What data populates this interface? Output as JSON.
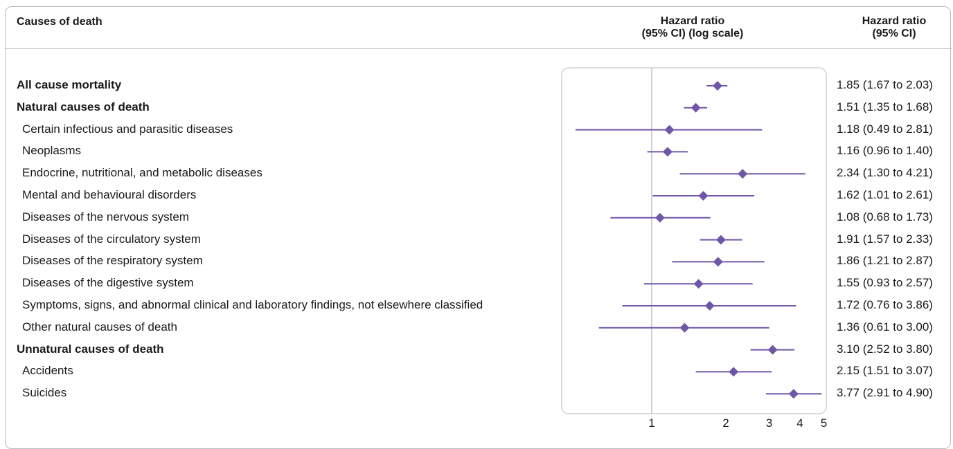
{
  "headers": {
    "causes": "Causes of death",
    "plot_line1": "Hazard ratio",
    "plot_line2": "(95% CI) (log scale)",
    "hr_line1": "Hazard ratio",
    "hr_line2": "(95% CI)"
  },
  "colors": {
    "marker": "#6f57a8",
    "reference_line": "#b0b0b0",
    "frame": "#b9b9b9"
  },
  "chart_data": {
    "type": "forest",
    "x_scale": "log",
    "xlim": [
      0.6,
      5
    ],
    "reference_value": 1,
    "x_ticks": [
      1,
      2,
      3,
      4,
      5
    ],
    "x_tick_labels": [
      "1",
      "2",
      "3",
      "4",
      "5"
    ],
    "rows": [
      {
        "label": "All cause mortality",
        "bold": true,
        "hr": 1.85,
        "lo": 1.67,
        "hi": 2.03,
        "text": "1.85 (1.67 to 2.03)"
      },
      {
        "label": "Natural causes of death",
        "bold": true,
        "hr": 1.51,
        "lo": 1.35,
        "hi": 1.68,
        "text": "1.51 (1.35 to 1.68)"
      },
      {
        "label": "Certain infectious and parasitic diseases",
        "bold": false,
        "hr": 1.18,
        "lo": 0.49,
        "hi": 2.81,
        "text": "1.18 (0.49 to 2.81)"
      },
      {
        "label": "Neoplasms",
        "bold": false,
        "hr": 1.16,
        "lo": 0.96,
        "hi": 1.4,
        "text": "1.16 (0.96 to 1.40)"
      },
      {
        "label": "Endocrine, nutritional, and metabolic diseases",
        "bold": false,
        "hr": 2.34,
        "lo": 1.3,
        "hi": 4.21,
        "text": "2.34 (1.30 to 4.21)"
      },
      {
        "label": "Mental and behavioural disorders",
        "bold": false,
        "hr": 1.62,
        "lo": 1.01,
        "hi": 2.61,
        "text": "1.62 (1.01 to 2.61)"
      },
      {
        "label": "Diseases of the nervous system",
        "bold": false,
        "hr": 1.08,
        "lo": 0.68,
        "hi": 1.73,
        "text": "1.08 (0.68 to 1.73)"
      },
      {
        "label": "Diseases of the circulatory system",
        "bold": false,
        "hr": 1.91,
        "lo": 1.57,
        "hi": 2.33,
        "text": "1.91 (1.57 to 2.33)"
      },
      {
        "label": "Diseases of the respiratory system",
        "bold": false,
        "hr": 1.86,
        "lo": 1.21,
        "hi": 2.87,
        "text": "1.86 (1.21 to 2.87)"
      },
      {
        "label": "Diseases of the digestive system",
        "bold": false,
        "hr": 1.55,
        "lo": 0.93,
        "hi": 2.57,
        "text": "1.55 (0.93 to 2.57)"
      },
      {
        "label": "Symptoms, signs, and abnormal clinical and laboratory findings, not elsewhere classified",
        "bold": false,
        "hr": 1.72,
        "lo": 0.76,
        "hi": 3.86,
        "text": "1.72 (0.76 to 3.86)"
      },
      {
        "label": "Other natural causes of death",
        "bold": false,
        "hr": 1.36,
        "lo": 0.61,
        "hi": 3.0,
        "text": "1.36 (0.61 to 3.00)"
      },
      {
        "label": "Unnatural causes of death",
        "bold": true,
        "hr": 3.1,
        "lo": 2.52,
        "hi": 3.8,
        "text": "3.10 (2.52 to 3.80)"
      },
      {
        "label": "Accidents",
        "bold": false,
        "hr": 2.15,
        "lo": 1.51,
        "hi": 3.07,
        "text": "2.15 (1.51 to 3.07)"
      },
      {
        "label": "Suicides",
        "bold": false,
        "hr": 3.77,
        "lo": 2.91,
        "hi": 4.9,
        "text": "3.77 (2.91 to 4.90)"
      }
    ]
  }
}
